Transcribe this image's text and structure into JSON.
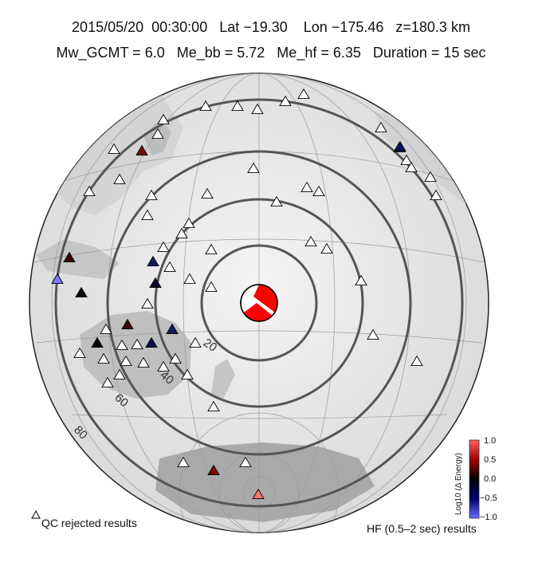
{
  "header": {
    "line1": "2015/05/20  00:30:00   Lat −19.30    Lon −175.46   z=180.3 km",
    "line2": "Mw_GCMT = 6.0   Me_bb = 5.72   Me_hf = 6.35   Duration = 15 sec"
  },
  "distance_labels": [
    "20",
    "40",
    "60",
    "80"
  ],
  "legend": {
    "qc_rejected": "QC rejected results",
    "hf_results": "HF (0.5–2 sec) results"
  },
  "colorbar": {
    "title": "Log10 (Δ Energy)",
    "ticks": [
      "1.0",
      "0.5",
      "0.0",
      "−0.5",
      "−1.0"
    ],
    "colors": [
      "#ff6060",
      "#c00000",
      "#000000",
      "#000080",
      "#6a6aff"
    ]
  },
  "stations": {
    "rejected_count": 52,
    "colored": [
      {
        "value": 0.6,
        "color": "#7a0b0b"
      },
      {
        "value": -0.4,
        "color": "#0a1060"
      },
      {
        "value": 0.4,
        "color": "#3a0505"
      },
      {
        "value": -0.5,
        "color": "#101a60"
      },
      {
        "value": -0.8,
        "color": "#7b7bff"
      },
      {
        "value": -0.3,
        "color": "#0a0a30"
      },
      {
        "value": 0.0,
        "color": "#050505"
      },
      {
        "value": 0.5,
        "color": "#3a0808"
      },
      {
        "value": -0.3,
        "color": "#14205a"
      },
      {
        "value": 0.0,
        "color": "#050510"
      },
      {
        "value": -0.4,
        "color": "#0a1050"
      },
      {
        "value": 0.6,
        "color": "#7a0808"
      },
      {
        "value": 0.9,
        "color": "#ff7070"
      }
    ]
  },
  "mechanism": {
    "fill": "#ff0000"
  }
}
